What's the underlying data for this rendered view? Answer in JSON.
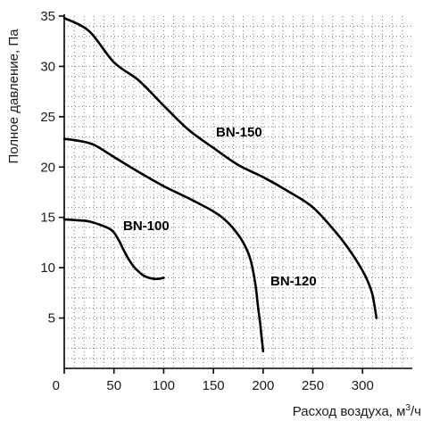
{
  "chart_data": {
    "type": "line",
    "xlabel_text": "Расход воздуха, м",
    "xlabel_sup": "3",
    "xlabel_unit": "/ч",
    "ylabel": "Полное давление, Па",
    "xlim": [
      0,
      350
    ],
    "ylim": [
      0,
      35
    ],
    "x_ticks": [
      "0",
      "50",
      "100",
      "150",
      "200",
      "250",
      "300"
    ],
    "y_ticks": [
      "5",
      "10",
      "15",
      "20",
      "25",
      "30",
      "35"
    ],
    "grid": true,
    "series": [
      {
        "name": "BN-100",
        "x": [
          0,
          15,
          25,
          35,
          45,
          50,
          55,
          60,
          65,
          70,
          75,
          80,
          85,
          90,
          95,
          100
        ],
        "y": [
          14.8,
          14.7,
          14.6,
          14.3,
          13.9,
          13.5,
          12.7,
          11.7,
          10.8,
          10.1,
          9.6,
          9.2,
          9.0,
          8.9,
          8.9,
          9.0
        ]
      },
      {
        "name": "BN-120",
        "x": [
          0,
          15,
          30,
          50,
          75,
          100,
          125,
          150,
          160,
          170,
          180,
          187,
          192,
          195,
          197,
          198,
          199,
          200
        ],
        "y": [
          22.8,
          22.6,
          22.2,
          21.0,
          19.5,
          18.1,
          16.9,
          15.6,
          14.9,
          13.9,
          12.5,
          10.9,
          8.5,
          6.0,
          4.5,
          3.5,
          2.6,
          1.7
        ]
      },
      {
        "name": "BN-150",
        "x": [
          0,
          25,
          50,
          75,
          100,
          125,
          150,
          175,
          200,
          225,
          250,
          275,
          290,
          300,
          305,
          310,
          314
        ],
        "y": [
          34.8,
          33.5,
          30.4,
          28.6,
          26.1,
          23.7,
          21.9,
          20.2,
          19.0,
          17.6,
          16.0,
          13.3,
          11.3,
          9.7,
          8.7,
          7.3,
          5.0
        ]
      }
    ],
    "labels": {
      "bn100": "BN-100",
      "bn120": "BN-120",
      "bn150": "BN-150"
    }
  }
}
